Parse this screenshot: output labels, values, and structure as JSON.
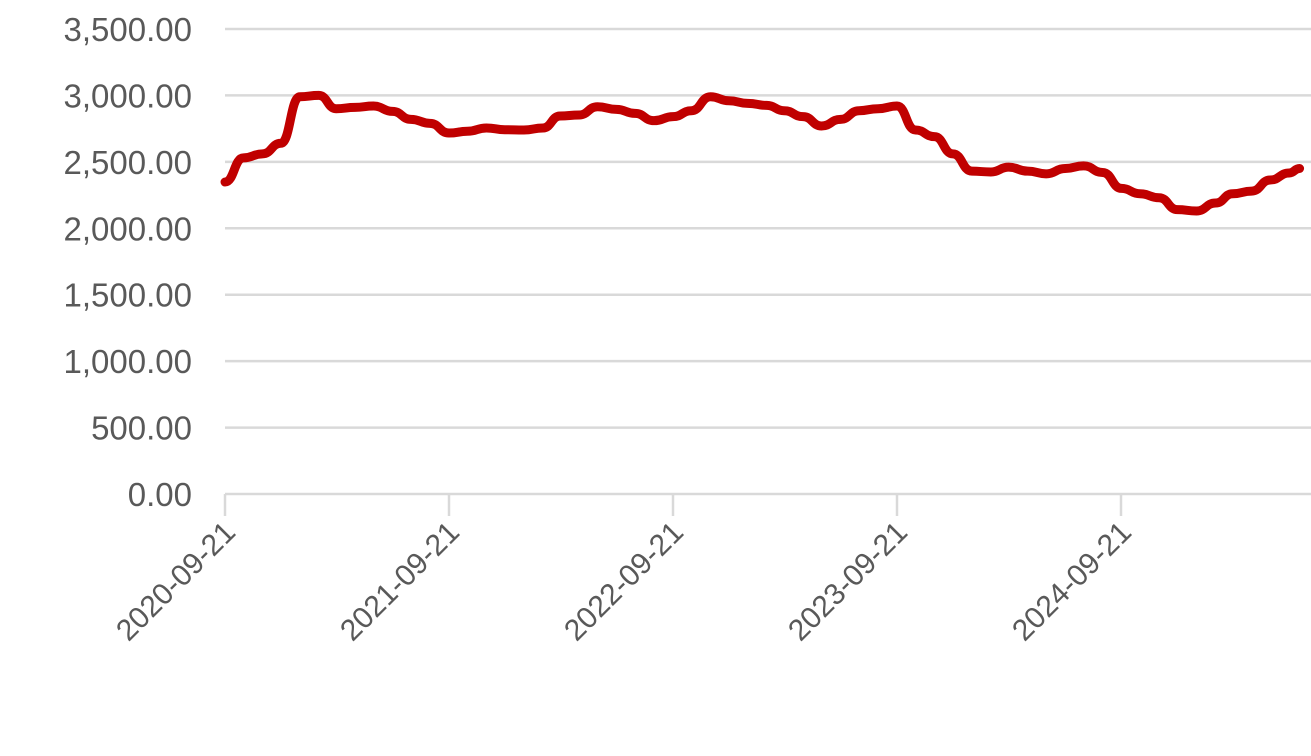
{
  "chart_data": {
    "type": "line",
    "title": "",
    "xlabel": "",
    "ylabel": "",
    "ylim": [
      0,
      3500
    ],
    "y_ticks": [
      "0.00",
      "500.00",
      "1,000.00",
      "1,500.00",
      "2,000.00",
      "2,500.00",
      "3,000.00",
      "3,500.00"
    ],
    "y_tick_values": [
      0,
      500,
      1000,
      1500,
      2000,
      2500,
      3000,
      3500
    ],
    "x_ticks": [
      "2020-09-21",
      "2021-09-21",
      "2022-09-21",
      "2023-09-21",
      "2024-09-21"
    ],
    "xlim": [
      "2020-09-21",
      "2025-07-08"
    ],
    "grid": "horizontal",
    "legend": "none",
    "series_color": "#c00000",
    "grid_color": "#d9d9d9",
    "x": [
      "2020-09-21",
      "2020-10-21",
      "2020-11-21",
      "2020-12-21",
      "2021-01-21",
      "2021-02-21",
      "2021-03-21",
      "2021-04-21",
      "2021-05-21",
      "2021-06-21",
      "2021-07-21",
      "2021-08-21",
      "2021-09-21",
      "2021-10-21",
      "2021-11-21",
      "2021-12-21",
      "2022-01-21",
      "2022-02-21",
      "2022-03-21",
      "2022-04-21",
      "2022-05-21",
      "2022-06-21",
      "2022-07-21",
      "2022-08-21",
      "2022-09-21",
      "2022-10-21",
      "2022-11-21",
      "2022-12-21",
      "2023-01-21",
      "2023-02-21",
      "2023-03-21",
      "2023-04-21",
      "2023-05-21",
      "2023-06-21",
      "2023-07-21",
      "2023-08-21",
      "2023-09-21",
      "2023-10-21",
      "2023-11-21",
      "2023-12-21",
      "2024-01-21",
      "2024-02-21",
      "2024-03-21",
      "2024-04-21",
      "2024-05-21",
      "2024-06-21",
      "2024-07-21",
      "2024-08-21",
      "2024-09-21",
      "2024-10-21",
      "2024-11-21",
      "2024-12-21",
      "2025-01-21",
      "2025-02-21",
      "2025-03-21",
      "2025-04-21",
      "2025-05-21",
      "2025-06-21",
      "2025-07-08"
    ],
    "values": [
      2348,
      2530,
      2560,
      2640,
      2990,
      3000,
      2900,
      2910,
      2920,
      2880,
      2820,
      2790,
      2717,
      2730,
      2755,
      2742,
      2740,
      2755,
      2845,
      2853,
      2915,
      2895,
      2865,
      2810,
      2840,
      2885,
      2990,
      2960,
      2940,
      2925,
      2885,
      2840,
      2770,
      2820,
      2885,
      2900,
      2920,
      2740,
      2690,
      2560,
      2430,
      2424,
      2460,
      2430,
      2410,
      2450,
      2470,
      2420,
      2300,
      2260,
      2230,
      2140,
      2130,
      2190,
      2260,
      2280,
      2363,
      2416,
      2450
    ]
  }
}
